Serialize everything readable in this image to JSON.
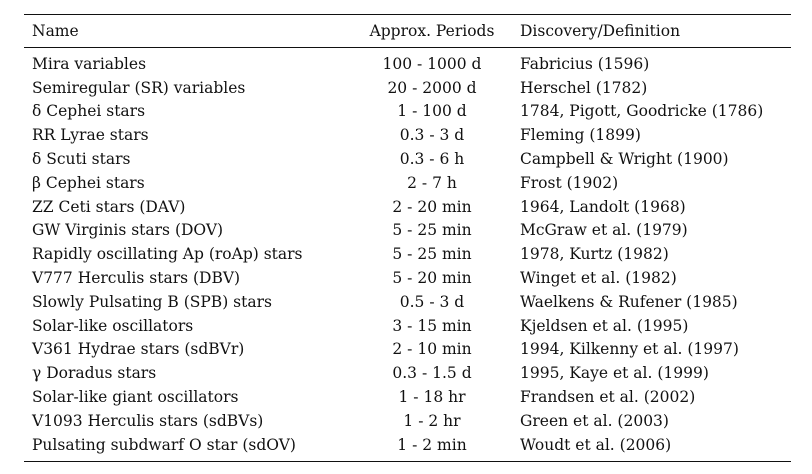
{
  "table": {
    "headers": {
      "name": "Name",
      "period": "Approx. Periods",
      "discovery": "Discovery/Definition"
    },
    "rows": [
      {
        "name": "Mira variables",
        "period": "100 - 1000 d",
        "discovery": "Fabricius (1596)"
      },
      {
        "name": "Semiregular (SR) variables",
        "period": "20 - 2000 d",
        "discovery": "Herschel (1782)"
      },
      {
        "name": "δ Cephei stars",
        "period": "1 - 100 d",
        "discovery": "1784, Pigott, Goodricke (1786)"
      },
      {
        "name": "RR Lyrae stars",
        "period": "0.3 - 3 d",
        "discovery": "Fleming (1899)"
      },
      {
        "name": "δ Scuti stars",
        "period": "0.3 - 6 h",
        "discovery": "Campbell & Wright (1900)"
      },
      {
        "name": "β Cephei stars",
        "period": "2 - 7 h",
        "discovery": "Frost (1902)"
      },
      {
        "name": "ZZ Ceti stars (DAV)",
        "period": "2 - 20 min",
        "discovery": "1964, Landolt (1968)"
      },
      {
        "name": "GW Virginis stars (DOV)",
        "period": "5 - 25 min",
        "discovery": "McGraw et al. (1979)"
      },
      {
        "name": "Rapidly oscillating Ap (roAp) stars",
        "period": "5 - 25 min",
        "discovery": "1978, Kurtz (1982)"
      },
      {
        "name": "V777 Herculis stars (DBV)",
        "period": "5 - 20 min",
        "discovery": "Winget et al. (1982)"
      },
      {
        "name": "Slowly Pulsating B (SPB) stars",
        "period": "0.5 - 3 d",
        "discovery": "Waelkens & Rufener (1985)"
      },
      {
        "name": "Solar-like oscillators",
        "period": "3 - 15 min",
        "discovery": "Kjeldsen et al. (1995)"
      },
      {
        "name": "V361 Hydrae stars (sdBVr)",
        "period": "2 - 10 min",
        "discovery": "1994, Kilkenny et al. (1997)"
      },
      {
        "name": "γ Doradus stars",
        "period": "0.3 - 1.5 d",
        "discovery": "1995, Kaye et al. (1999)"
      },
      {
        "name": "Solar-like giant oscillators",
        "period": "1 - 18 hr",
        "discovery": "Frandsen et al. (2002)"
      },
      {
        "name": "V1093 Herculis stars (sdBVs)",
        "period": "1 - 2 hr",
        "discovery": "Green et al. (2003)"
      },
      {
        "name": "Pulsating subdwarf O star (sdOV)",
        "period": "1 - 2 min",
        "discovery": "Woudt et al. (2006)"
      }
    ]
  }
}
